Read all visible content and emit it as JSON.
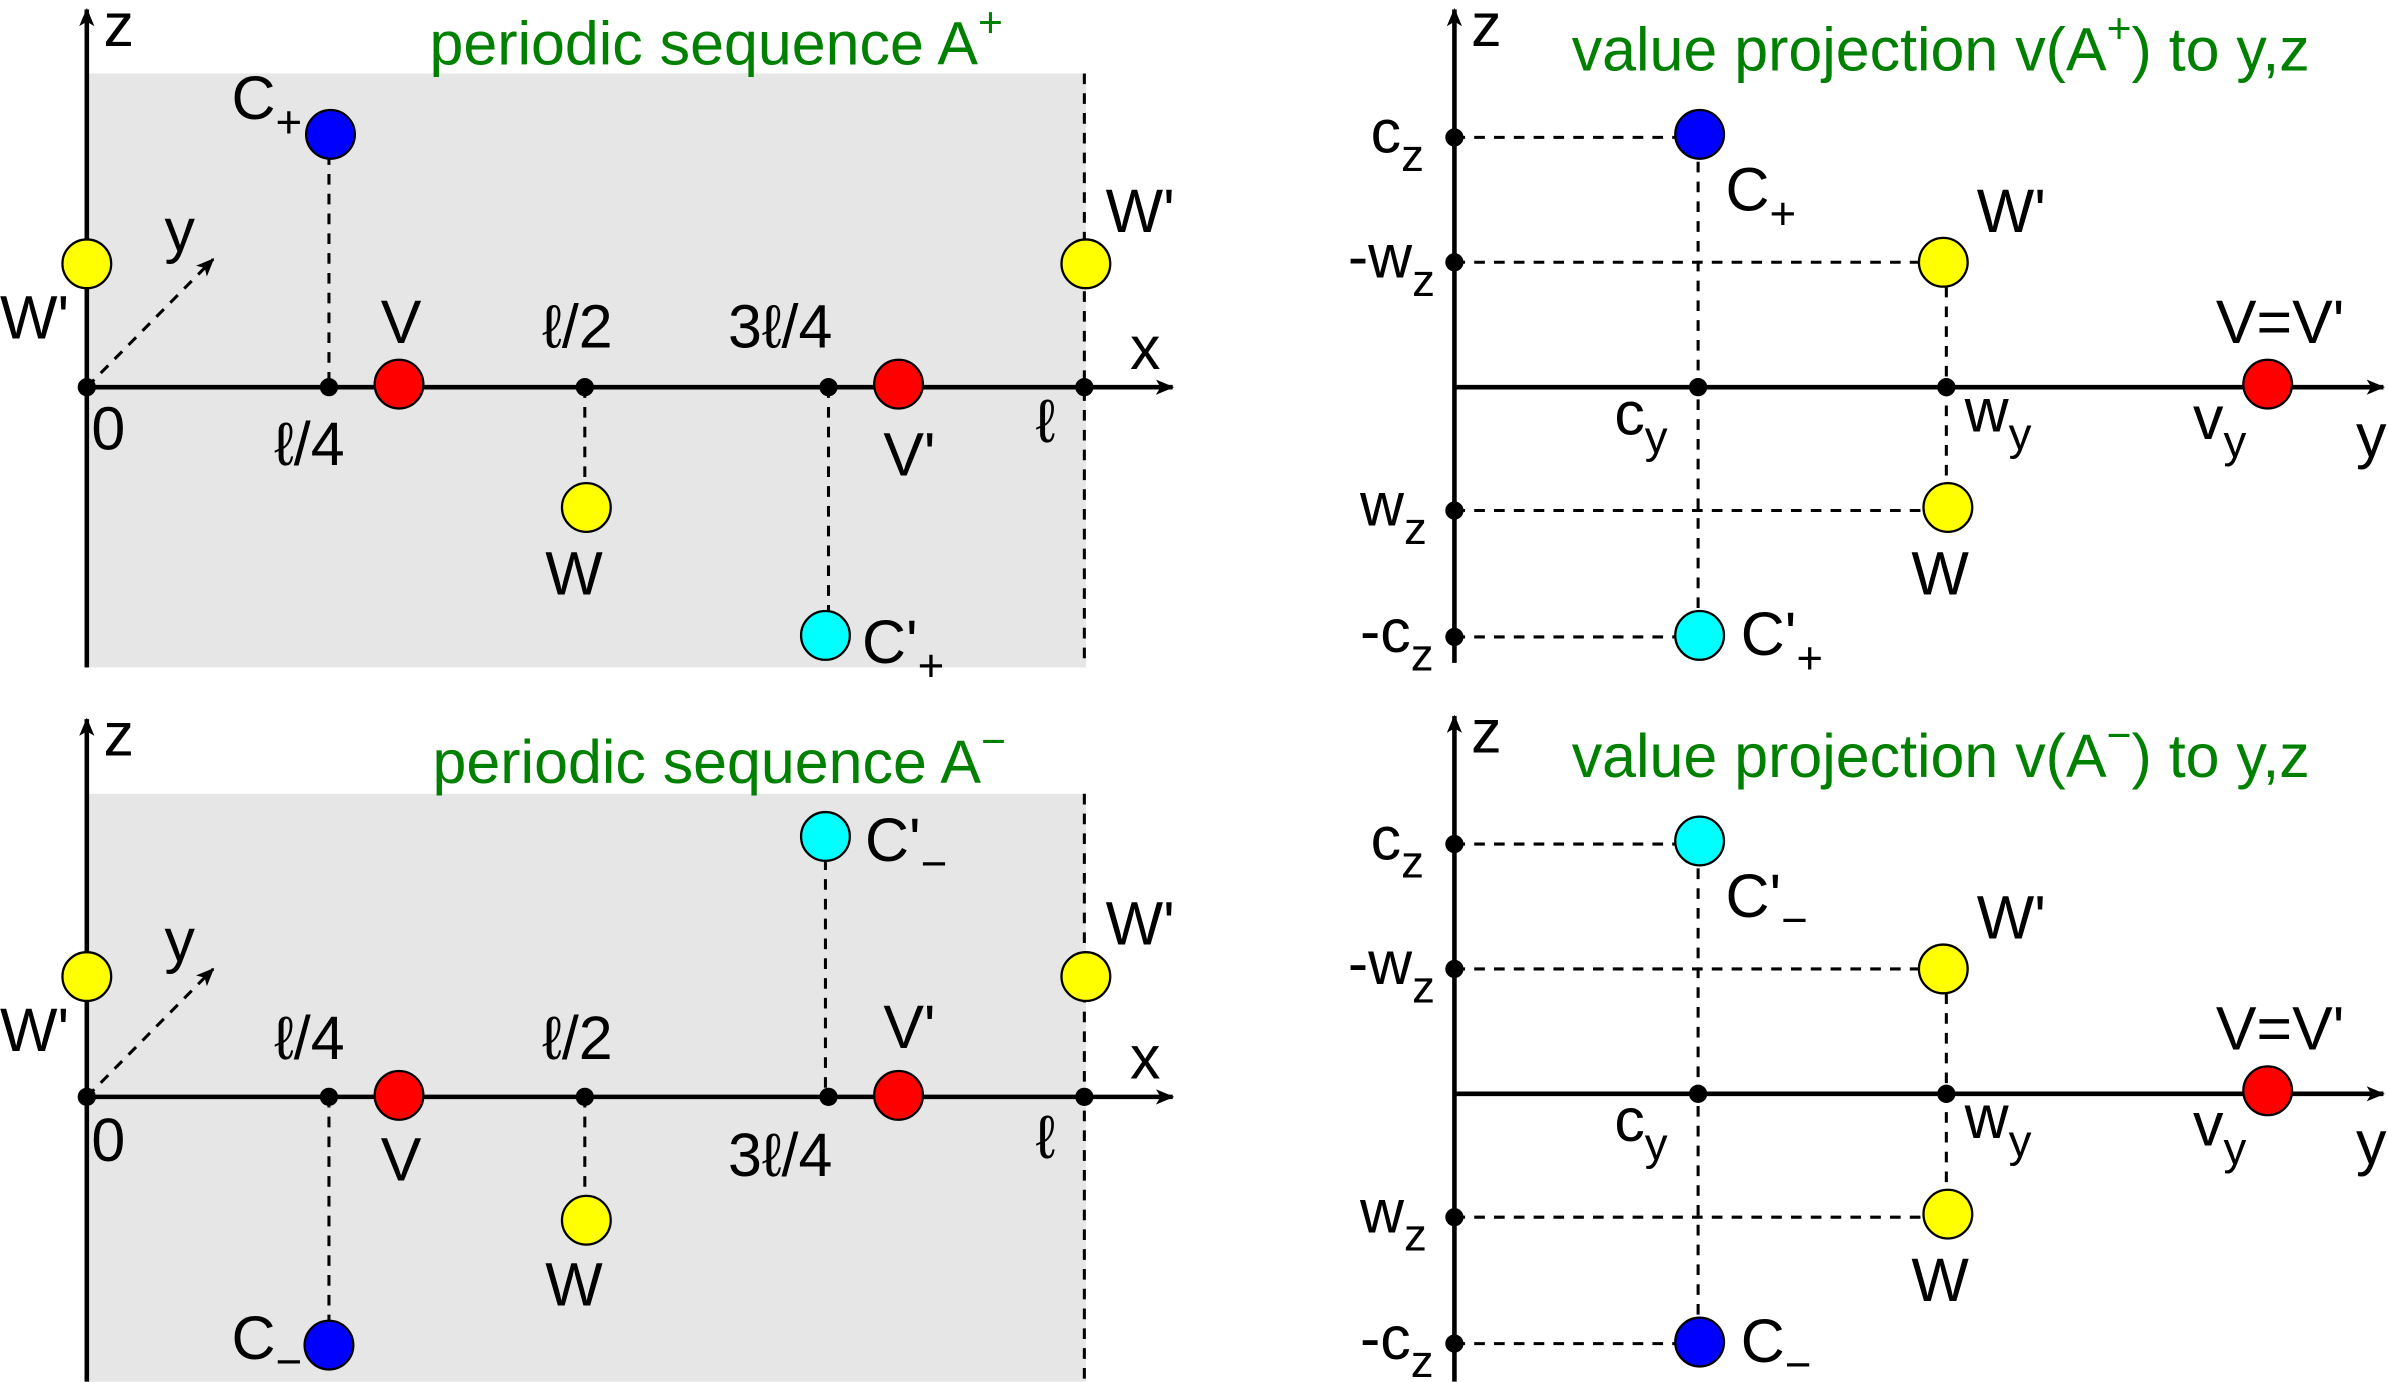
{
  "colors": {
    "background_panel": "#e6e6e6",
    "title": "#008000",
    "V": "#ff0000",
    "C": "#0000ff",
    "C_prime": "#00ffff",
    "W": "#ffff00",
    "axis": "#000000"
  },
  "panels": [
    {
      "title": {
        "text": "periodic sequence A",
        "sup": "+"
      },
      "axes": {
        "z": {
          "text": "z"
        },
        "x": {
          "text": "x"
        },
        "y": {
          "text": "y"
        }
      },
      "ticks": [
        {
          "text": "0"
        },
        {
          "text": "ℓ/4"
        },
        {
          "text": "ℓ/2"
        },
        {
          "text": "3ℓ/4"
        },
        {
          "text": "ℓ"
        }
      ],
      "points": [
        {
          "text": "W'"
        },
        {
          "text": "W'"
        },
        {
          "text": "C",
          "sub": "+"
        },
        {
          "text": "V"
        },
        {
          "text": "V'"
        },
        {
          "text": "W"
        },
        {
          "text": "C'",
          "sub": "+"
        }
      ]
    },
    {
      "title": {
        "text": "periodic sequence A",
        "sup": "−"
      },
      "axes": {
        "z": {
          "text": "z"
        },
        "x": {
          "text": "x"
        },
        "y": {
          "text": "y"
        }
      },
      "ticks": [
        {
          "text": "0"
        },
        {
          "text": "ℓ/4"
        },
        {
          "text": "ℓ/2"
        },
        {
          "text": "3ℓ/4"
        },
        {
          "text": "ℓ"
        }
      ],
      "points": [
        {
          "text": "W'"
        },
        {
          "text": "W'"
        },
        {
          "text": "C'",
          "sub": "−"
        },
        {
          "text": "V"
        },
        {
          "text": "V'"
        },
        {
          "text": "W"
        },
        {
          "text": "C",
          "sub": "−"
        }
      ]
    },
    {
      "title": {
        "text": "value projection v(A",
        "sup": "+",
        "after": ") to y,z"
      },
      "axes": {
        "z": {
          "text": "z"
        },
        "y": {
          "text": "y"
        }
      },
      "ticks": [
        {
          "text": "c",
          "sub": "z"
        },
        {
          "text": "-w",
          "sub": "z"
        },
        {
          "text": "w",
          "sub": "z"
        },
        {
          "text": "-c",
          "sub": "z"
        },
        {
          "text": "c",
          "sub": "y"
        },
        {
          "text": "w",
          "sub": "y"
        },
        {
          "text": "v",
          "sub": "y"
        }
      ],
      "points": [
        {
          "text": "C",
          "sub": "+"
        },
        {
          "text": "W'"
        },
        {
          "text": "V=V'"
        },
        {
          "text": "W"
        },
        {
          "text": "C'",
          "sub": "+"
        }
      ]
    },
    {
      "title": {
        "text": "value projection v(A",
        "sup": "−",
        "after": ") to y,z"
      },
      "axes": {
        "z": {
          "text": "z"
        },
        "y": {
          "text": "y"
        }
      },
      "ticks": [
        {
          "text": "c",
          "sub": "z"
        },
        {
          "text": "-w",
          "sub": "z"
        },
        {
          "text": "w",
          "sub": "z"
        },
        {
          "text": "-c",
          "sub": "z"
        },
        {
          "text": "c",
          "sub": "y"
        },
        {
          "text": "w",
          "sub": "y"
        },
        {
          "text": "v",
          "sub": "y"
        }
      ],
      "points": [
        {
          "text": "C'",
          "sub": "−"
        },
        {
          "text": "W'"
        },
        {
          "text": "V=V'"
        },
        {
          "text": "W"
        },
        {
          "text": "C",
          "sub": "−"
        }
      ]
    }
  ]
}
